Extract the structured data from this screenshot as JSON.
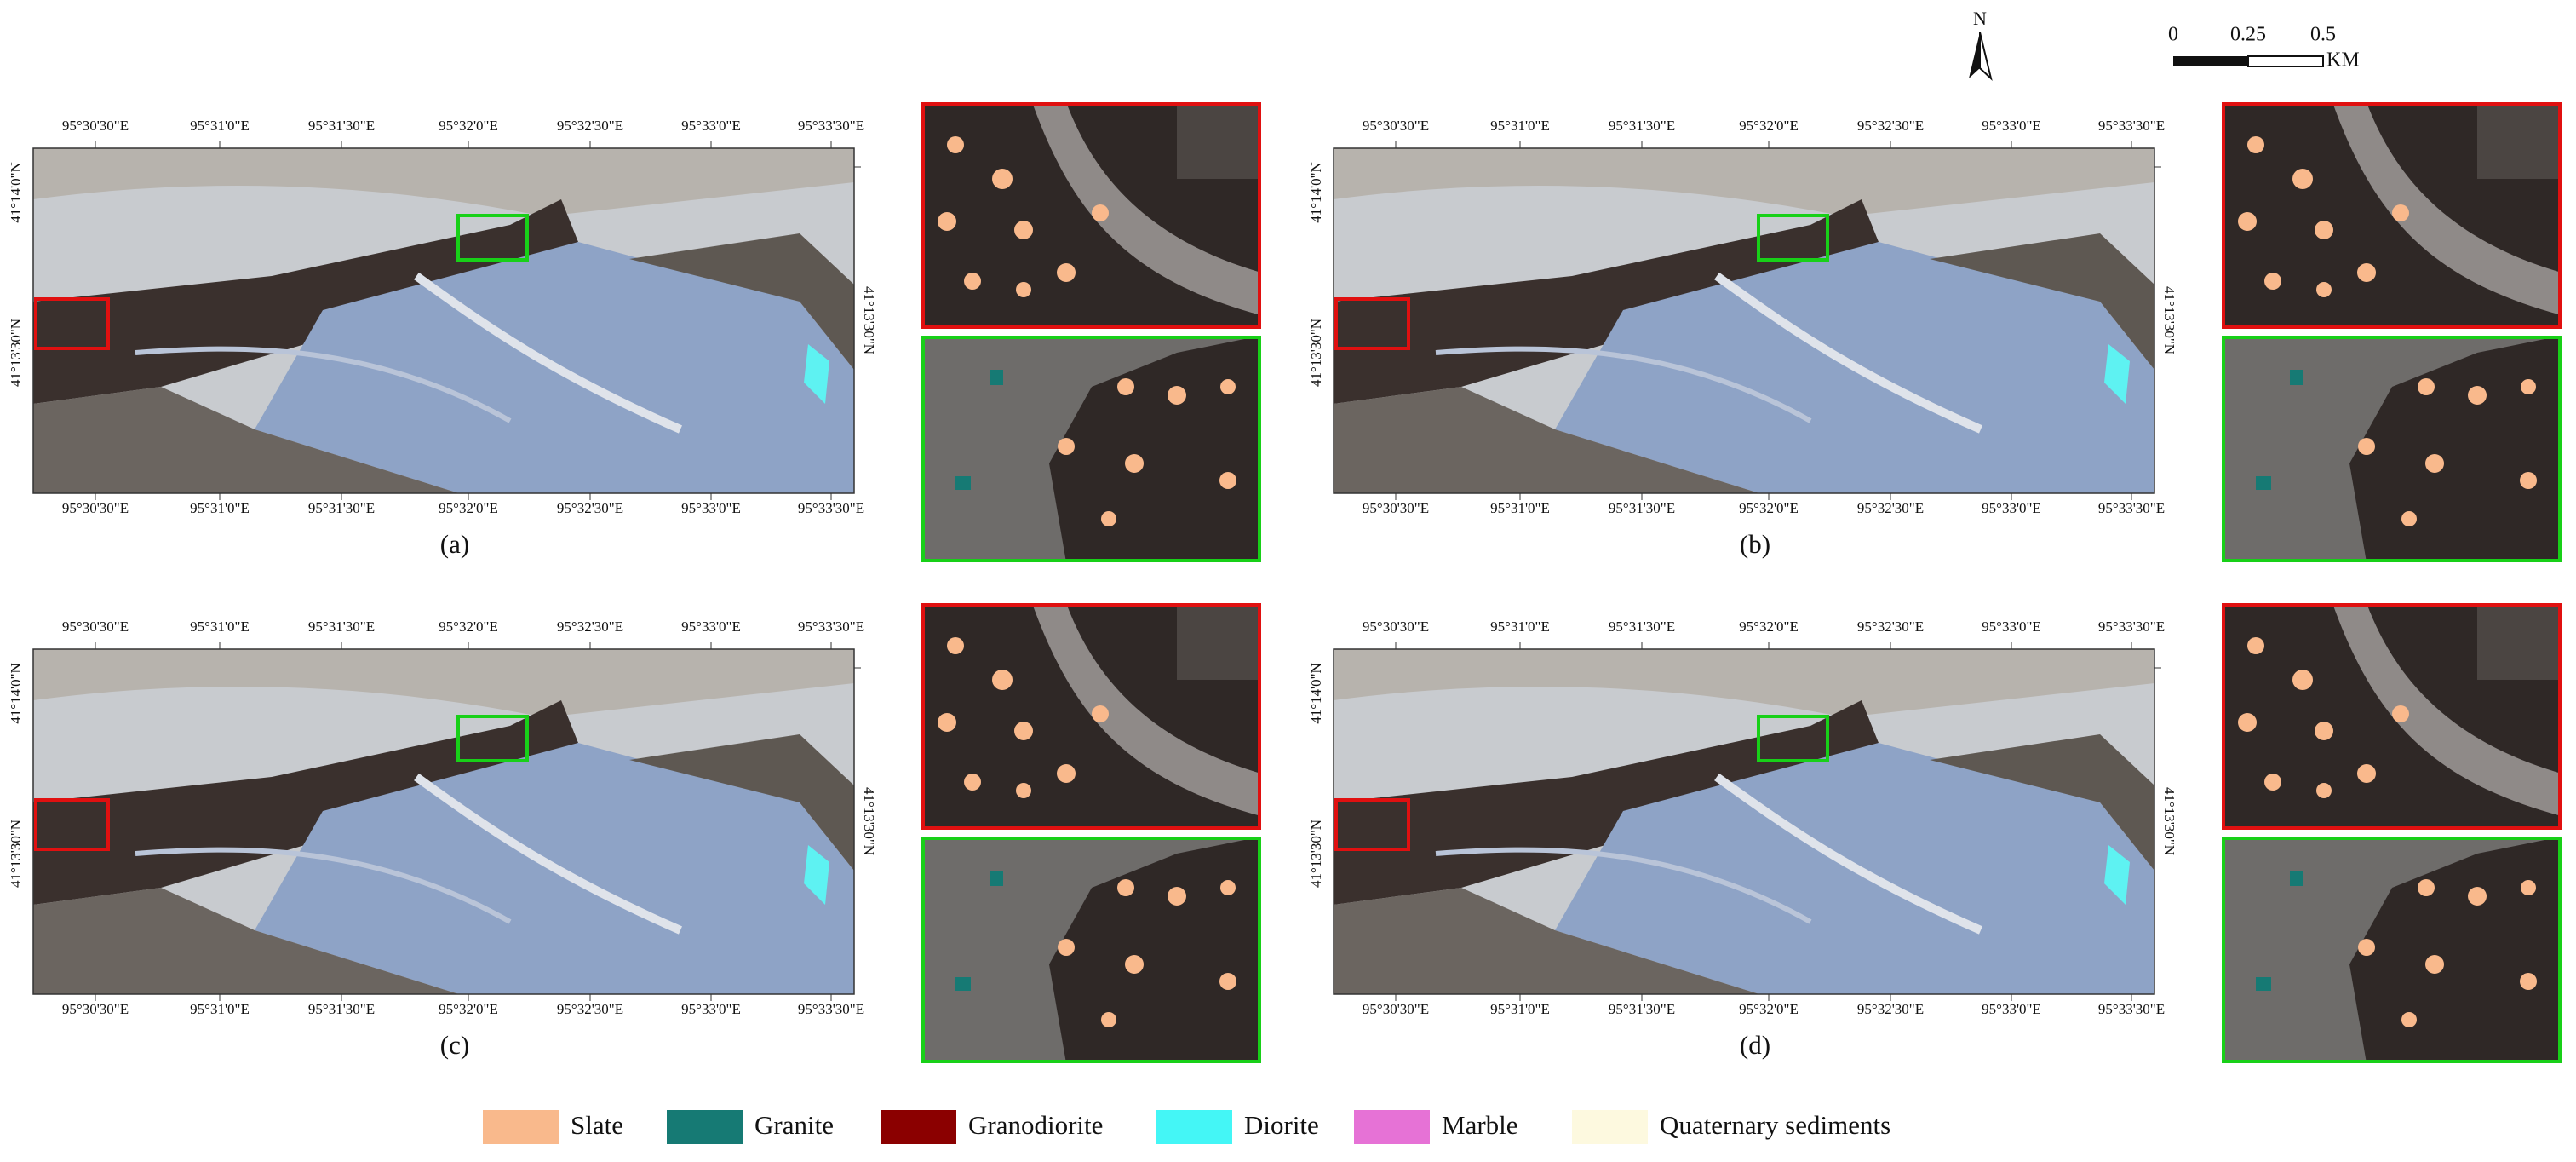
{
  "north": "N",
  "scale_bar": {
    "labels": [
      "0",
      "0.25",
      "0.5"
    ],
    "unit": "KM"
  },
  "lon_labels": [
    "95°30'30\"E",
    "95°31'0\"E",
    "95°31'30\"E",
    "95°32'0\"E",
    "95°32'30\"E",
    "95°33'0\"E",
    "95°33'30\"E"
  ],
  "lat_labels": [
    "41°14'0\"N",
    "41°13'30\"N"
  ],
  "panels": [
    {
      "caption": "(a)"
    },
    {
      "caption": "(b)"
    },
    {
      "caption": "(c)"
    },
    {
      "caption": "(d)"
    }
  ],
  "legend": [
    {
      "label": "Slate",
      "color": "#f9b98c"
    },
    {
      "label": "Granite",
      "color": "#167a74"
    },
    {
      "label": "Granodiorite",
      "color": "#8b0000"
    },
    {
      "label": "Diorite",
      "color": "#44f6f6"
    },
    {
      "label": "Marble",
      "color": "#e672d6"
    },
    {
      "label": "Quaternary sediments",
      "color": "#fdf9df"
    }
  ]
}
